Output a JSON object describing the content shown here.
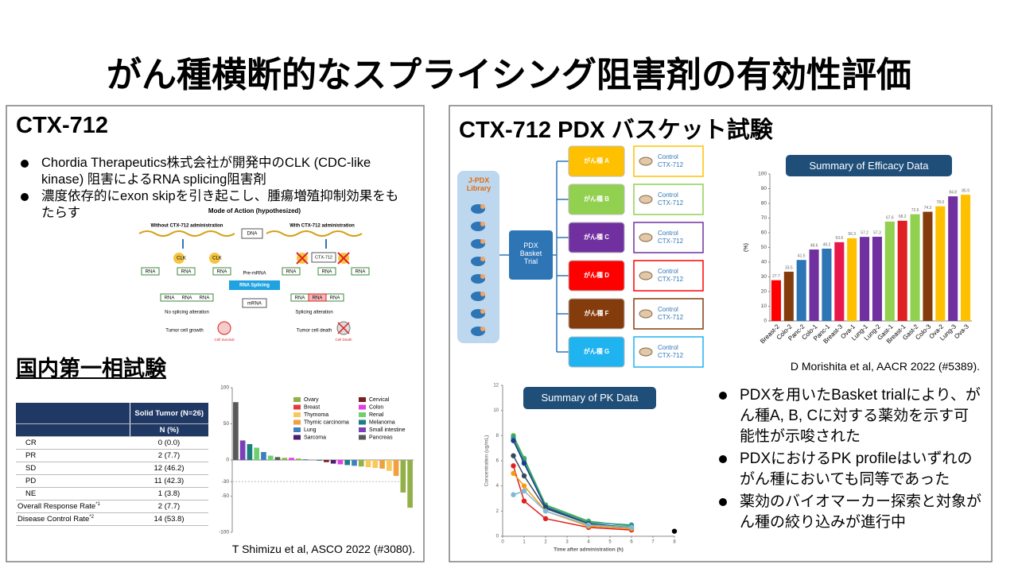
{
  "title": "がん種横断的なスプライシング阻害剤の有効性評価",
  "left": {
    "heading": "CTX-712",
    "bullets": [
      "Chordia Therapeutics株式会社が開発中のCLK (CDC-like kinase) 阻害によるRNA splicing阻害剤",
      "濃度依存的にexon skipを引き起こし、腫瘍増殖抑制効果をもたらす"
    ],
    "moa": {
      "title": "Mode of Action (hypothesized)",
      "without": "Without CTX-712 administration",
      "with": "With CTX-712 administration",
      "dna": "DNA",
      "pre_mrna": "Pre-mRNA",
      "splicing": "RNA Splicing",
      "mrna": "mRNA",
      "clk": "CLK",
      "drug": "CTX-712",
      "rna": "RNA",
      "no_alteration": "No splicing alteration",
      "alteration": "Splicing alteration",
      "growth": "Tumor cell growth",
      "death": "Tumor cell death",
      "survival": "Cell Survival",
      "cell_death": "Cell Death"
    },
    "trial_heading": "国内第一相試験",
    "table": {
      "header": "Solid Tumor (N=26)",
      "subheader": "N (%)",
      "rows": [
        {
          "label": "CR",
          "value": "0 (0.0)"
        },
        {
          "label": "PR",
          "value": "2 (7.7)"
        },
        {
          "label": "SD",
          "value": "12 (46.2)"
        },
        {
          "label": "PD",
          "value": "11 (42.3)"
        },
        {
          "label": "NE",
          "value": "1 (3.8)"
        },
        {
          "label": "Overall Response Rate",
          "note": "*1",
          "value": "2 (7.7)"
        },
        {
          "label": "Disease Control Rate",
          "note": "*2",
          "value": "14 (53.8)"
        }
      ]
    },
    "waterfall": {
      "type": "bar",
      "values": [
        80,
        27,
        22,
        17,
        11,
        6,
        4,
        3,
        3,
        2,
        1,
        0,
        -1,
        -3,
        -5,
        -6,
        -7,
        -8,
        -9,
        -10,
        -11,
        -12,
        -15,
        -22,
        -45,
        -66
      ],
      "colors": [
        "#595959",
        "#7b3fb8",
        "#1b7f7f",
        "#6fcf6f",
        "#3f7fbf",
        "#6fcf6f",
        "#595959",
        "#92b04a",
        "#e33ee3",
        "#92b04a",
        "#3f7fbf",
        "#6fcf6f",
        "#1b7f7f",
        "#7a1f1f",
        "#4b1e6e",
        "#e33ee3",
        "#1b7f7f",
        "#3f7fbf",
        "#92b04a",
        "#f6c95a",
        "#f6c95a",
        "#f0a040",
        "#f6c95a",
        "#f0a040",
        "#92b04a",
        "#92b04a"
      ],
      "ylim": [
        -100,
        100
      ],
      "yticks": [
        100,
        50,
        0,
        -30,
        -50,
        -100
      ],
      "reference_line": -30,
      "legend": [
        {
          "name": "Ovary",
          "color": "#92b04a"
        },
        {
          "name": "Breast",
          "color": "#e8393a"
        },
        {
          "name": "Thymoma",
          "color": "#f6c95a"
        },
        {
          "name": "Thymic carcinoma",
          "color": "#f0a040"
        },
        {
          "name": "Lung",
          "color": "#3f7fbf"
        },
        {
          "name": "Sarcoma",
          "color": "#4b1e6e"
        },
        {
          "name": "Cervical",
          "color": "#7a1f1f"
        },
        {
          "name": "Colon",
          "color": "#e33ee3"
        },
        {
          "name": "Renal",
          "color": "#6fcf6f"
        },
        {
          "name": "Melanoma",
          "color": "#1b7f7f"
        },
        {
          "name": "Small intestine",
          "color": "#7b3fb8"
        },
        {
          "name": "Pancreas",
          "color": "#595959"
        }
      ]
    },
    "citation": "T Shimizu et al, ASCO 2022 (#3080)."
  },
  "right": {
    "heading": "CTX-712 PDX バスケット試験",
    "library": "J-PDX Library",
    "trial": "PDX Basket Trial",
    "control": "Control",
    "drug": "CTX-712",
    "cancer_types": [
      {
        "label": "がん種 A",
        "color": "#ffc000"
      },
      {
        "label": "がん種 B",
        "color": "#92d050"
      },
      {
        "label": "がん種 C",
        "color": "#7030a0"
      },
      {
        "label": "がん種 D",
        "color": "#ff0000"
      },
      {
        "label": "がん種 F",
        "color": "#843c0c"
      },
      {
        "label": "がん種 G",
        "color": "#1fb3f0"
      }
    ],
    "efficacy": {
      "type": "bar",
      "title": "Summary of Efficacy Data",
      "ylabel": "(%)",
      "categories": [
        "Breast-2",
        "Colo-2",
        "Panc-2",
        "Colo-1",
        "Panc-1",
        "Breast-3",
        "Ova-1",
        "Lung-1",
        "Lung-2",
        "Gast-1",
        "Breast-1",
        "Gast-2",
        "Colo-3",
        "Ova-2",
        "Lung-3",
        "Ova-3"
      ],
      "values": [
        27.7,
        33.5,
        41.5,
        48.6,
        49.2,
        53.6,
        56.3,
        57.2,
        57.3,
        67.6,
        68.2,
        72.6,
        74.3,
        78.0,
        84.8,
        85.9
      ],
      "value_labels": [
        "27.7",
        "33.5",
        "41.5",
        "48.6",
        "49.2",
        "53.6",
        "56.3",
        "57.2",
        "57.3",
        "67.6",
        "68.2",
        "72.6",
        "74.3",
        "78.0",
        "84.8",
        "85.9"
      ],
      "colors": [
        "#ff0000",
        "#843c0c",
        "#2e75b6",
        "#7030a0",
        "#2e75b6",
        "#e8194a",
        "#ffc000",
        "#7030a0",
        "#7030a0",
        "#92d050",
        "#e02020",
        "#92d050",
        "#843c0c",
        "#ffc000",
        "#7030a0",
        "#ffc000"
      ],
      "ylim": [
        0,
        100
      ],
      "yticks": [
        0,
        10,
        20,
        30,
        40,
        50,
        60,
        70,
        80,
        90,
        100
      ]
    },
    "efficacy_citation": "D Morishita et al, AACR 2022 (#5389).",
    "pk": {
      "type": "line",
      "title": "Summary of PK Data",
      "xlabel": "Time after administration (h)",
      "ylabel": "Concentration (ug/mL)",
      "xlim": [
        0,
        8
      ],
      "xticks": [
        0,
        1,
        2,
        3,
        4,
        5,
        6,
        7,
        8
      ],
      "ylim": [
        0,
        12
      ],
      "yticks": [
        0,
        2,
        4,
        6,
        8,
        10,
        12
      ],
      "series": [
        {
          "color": "#4caf50",
          "x": [
            0.5,
            1,
            2,
            4,
            6
          ],
          "values": [
            8.0,
            6.2,
            2.5,
            1.2,
            0.8
          ]
        },
        {
          "color": "#2a9d8f",
          "x": [
            0.5,
            1,
            2,
            4,
            6
          ],
          "values": [
            7.8,
            6.0,
            2.4,
            1.1,
            0.9
          ]
        },
        {
          "color": "#1f3c88",
          "x": [
            0.5,
            1,
            2,
            4,
            6
          ],
          "values": [
            7.6,
            5.8,
            2.3,
            1.0,
            0.7
          ]
        },
        {
          "color": "#34495e",
          "x": [
            0.5,
            1,
            2,
            4,
            6
          ],
          "values": [
            6.4,
            4.8,
            2.2,
            1.0,
            0.6
          ]
        },
        {
          "color": "#e02020",
          "x": [
            0.5,
            1,
            2,
            4,
            6
          ],
          "values": [
            5.6,
            2.8,
            1.4,
            0.7,
            0.5
          ]
        },
        {
          "color": "#f39c12",
          "x": [
            0.5,
            1,
            2,
            4,
            6
          ],
          "values": [
            5.0,
            4.0,
            2.0,
            0.8,
            0.6
          ]
        },
        {
          "color": "#7fb8d8",
          "x": [
            0.5,
            1,
            2,
            4,
            6
          ],
          "values": [
            3.3,
            3.6,
            2.0,
            0.9,
            0.7
          ]
        },
        {
          "color": "#000000",
          "x": [
            8
          ],
          "values": [
            0.4
          ]
        }
      ]
    },
    "bullets": [
      "PDXを用いたBasket trialにより、がん種A, B, Cに対する薬効を示す可能性が示唆された",
      "PDXにおけるPK profileはいずれのがん種においても同等であった",
      "薬効のバイオマーカー探索と対象がん種の絞り込みが進行中"
    ]
  }
}
